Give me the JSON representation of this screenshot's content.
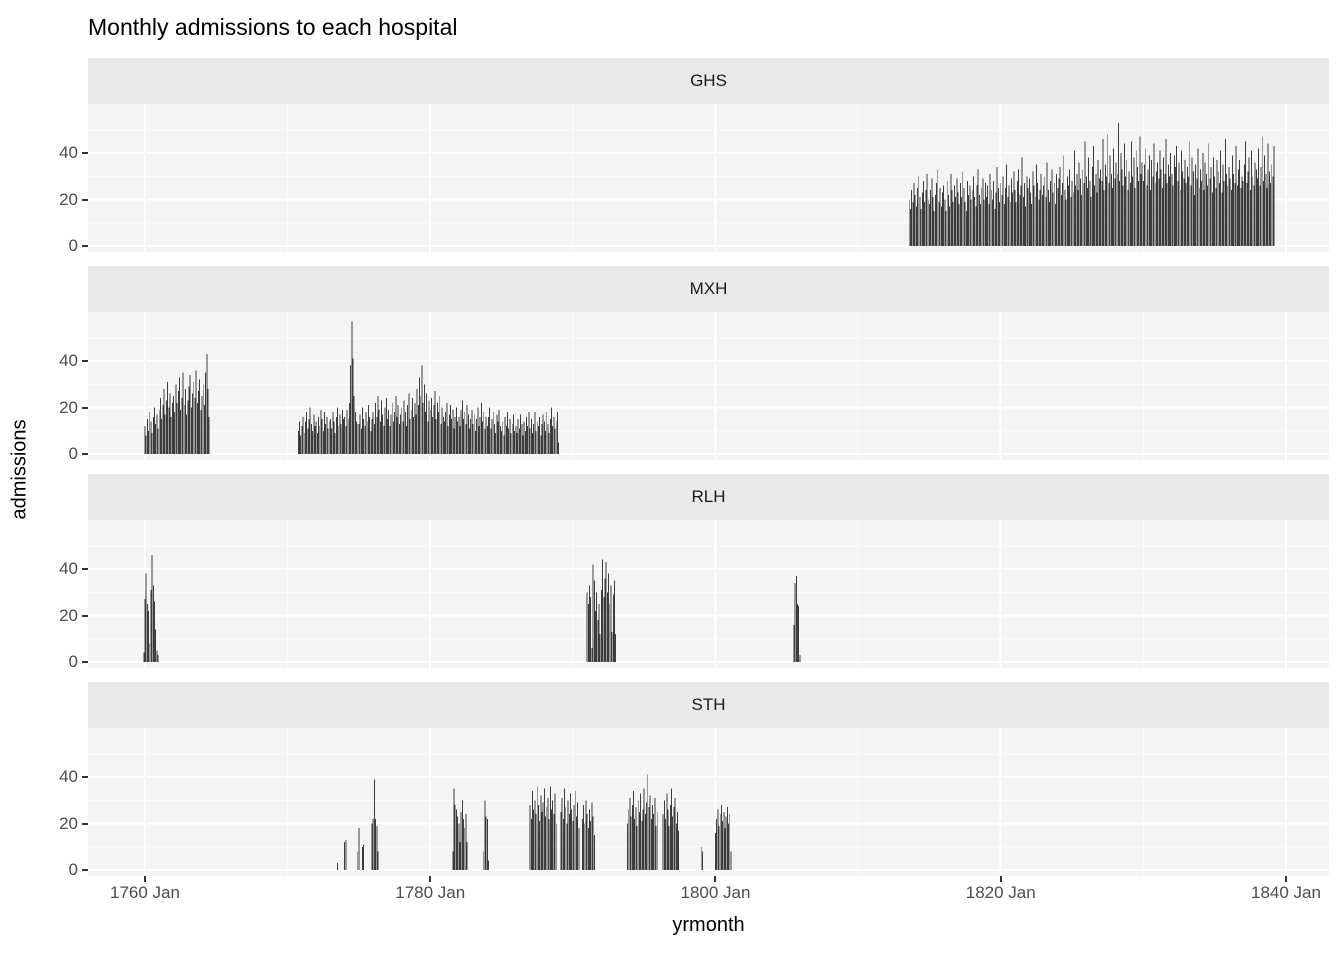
{
  "title": "Monthly admissions to each hospital",
  "colors": {
    "background": "#ffffff",
    "panel_bg": "#f4f4f4",
    "strip_bg": "#e9e9e9",
    "bar": "#3c3c3c",
    "grid_major": "#ffffff",
    "grid_minor": "#fbfbfb",
    "tick_label": "#4d4d4d",
    "tick_mark": "#333333",
    "axis_text": "#000000"
  },
  "chart_data": {
    "type": "bar",
    "title": "Monthly admissions to each hospital",
    "xlabel": "yrmonth",
    "ylabel": "admissions",
    "legend": "none",
    "grid": "on",
    "y_ticks": [
      0,
      20,
      40
    ],
    "y_minor": [
      10,
      30,
      50
    ],
    "ylim": [
      -3,
      57
    ],
    "x_ticks": [
      {
        "label": "1760 Jan",
        "year": 1760
      },
      {
        "label": "1780 Jan",
        "year": 1780
      },
      {
        "label": "1800 Jan",
        "year": 1800
      },
      {
        "label": "1820 Jan",
        "year": 1820
      },
      {
        "label": "1840 Jan",
        "year": 1840
      }
    ],
    "x_minor_years": [
      1770,
      1790,
      1810,
      1830
    ],
    "facets": [
      {
        "name": "GHS",
        "clusters": [
          {
            "start": "1813-08",
            "values": [
              20,
              16,
              24,
              19,
              27,
              22,
              17,
              25,
              30,
              21,
              16,
              23,
              28,
              19,
              24,
              31,
              20,
              18,
              24,
              29,
              21,
              15,
              22,
              27,
              33,
              19,
              25,
              17,
              23,
              26,
              20,
              15,
              28,
              22,
              17,
              31,
              24,
              19,
              26,
              21,
              29,
              23,
              18,
              27,
              21,
              32,
              25,
              19,
              15,
              28,
              22,
              26,
              20,
              24,
              30,
              21,
              17,
              26,
              33,
              22,
              18,
              25,
              29,
              20,
              27,
              21,
              26,
              18,
              31,
              24,
              20,
              28,
              16,
              23,
              34,
              25,
              19,
              27,
              22,
              30,
              18,
              25,
              35,
              21,
              26,
              19,
              29,
              23,
              32,
              24,
              19,
              28,
              33,
              22,
              26,
              38,
              21,
              27,
              17,
              30,
              25,
              29,
              23,
              18,
              32,
              26,
              21,
              35,
              27,
              20,
              24,
              31,
              22,
              26,
              30,
              21,
              36,
              24,
              19,
              28,
              33,
              23,
              27,
              18,
              31,
              25,
              29,
              34,
              22,
              27,
              39,
              24,
              20,
              30,
              26,
              33,
              21,
              28,
              23,
              41,
              26,
              31,
              24,
              36,
              29,
              22,
              33,
              27,
              45,
              30,
              25,
              38,
              28,
              21,
              34,
              43,
              26,
              31,
              23,
              37,
              29,
              33,
              28,
              46,
              24,
              35,
              30,
              48,
              27,
              39,
              31,
              25,
              42,
              29,
              36,
              31,
              53,
              28,
              40,
              33,
              26,
              44,
              30,
              37,
              24,
              32,
              27,
              45,
              30,
              38,
              25,
              41,
              34,
              28,
              47,
              31,
              36,
              28,
              35,
              42,
              26,
              33,
              39,
              24,
              37,
              30,
              44,
              27,
              32,
              36,
              29,
              41,
              33,
              25,
              38,
              31,
              46,
              27,
              35,
              30,
              40,
              31,
              26,
              39,
              34,
              43,
              28,
              36,
              24,
              41,
              32,
              29,
              37,
              27,
              34,
              30,
              45,
              26,
              38,
              32,
              22,
              35,
              29,
              42,
              25,
              33,
              28,
              40,
              24,
              36,
              31,
              26,
              44,
              29,
              34,
              23,
              38,
              30,
              25,
              37,
              32,
              27,
              41,
              23,
              35,
              28,
              46,
              31,
              26,
              34,
              29,
              24,
              39,
              31,
              27,
              43,
              26,
              33,
              37,
              25,
              30,
              28,
              35,
              45,
              27,
              32,
              38,
              24,
              41,
              30,
              26,
              36,
              33,
              29,
              42,
              26,
              34,
              47,
              28,
              39,
              31,
              25,
              44,
              32,
              27,
              35,
              30,
              43
            ]
          }
        ]
      },
      {
        "name": "MXH",
        "clusters": [
          {
            "start": "1760-01",
            "values": [
              12,
              8,
              15,
              10,
              18,
              14,
              9,
              16,
              20,
              13,
              17,
              11,
              19,
              24,
              15,
              21,
              28,
              17,
              23,
              31,
              20,
              26,
              16,
              22,
              25,
              18,
              30,
              22,
              27,
              33,
              19,
              24,
              35,
              21,
              28,
              17,
              23,
              29,
              34,
              20,
              26,
              31,
              24,
              36,
              22,
              27,
              32,
              19,
              25,
              30,
              21,
              35,
              43,
              28,
              16
            ]
          },
          {
            "start": "1770-10",
            "values": [
              10,
              14,
              8,
              12,
              16,
              9,
              14,
              18,
              11,
              15,
              20,
              13,
              10,
              17,
              12,
              14,
              9,
              16,
              12,
              19,
              15,
              10,
              18,
              13,
              16,
              11,
              14,
              15,
              11,
              18,
              14,
              9,
              16,
              20,
              12,
              17,
              13,
              19,
              15,
              16,
              12,
              19,
              15,
              22,
              38,
              57,
              41,
              25,
              18,
              14,
              13,
              13,
              17,
              11,
              20,
              15,
              12,
              18,
              14,
              21,
              16,
              10,
              15,
              18,
              13,
              22,
              16,
              25,
              19,
              14,
              23,
              17,
              12,
              20,
              24,
              15,
              19,
              12,
              17,
              22,
              14,
              18,
              25,
              16,
              21,
              13,
              17,
              20,
              14,
              23,
              18,
              12,
              21,
              26,
              15,
              19,
              24,
              16,
              22,
              17,
              28,
              21,
              33,
              25,
              38,
              22,
              30,
              18,
              26,
              14,
              23,
              19,
              24,
              16,
              21,
              27,
              15,
              22,
              18,
              25,
              13,
              20,
              16,
              14,
              18,
              22,
              12,
              17,
              21,
              15,
              19,
              11,
              16,
              20,
              14,
              16,
              12,
              19,
              23,
              15,
              18,
              13,
              21,
              17,
              11,
              15,
              19,
              13,
              17,
              10,
              15,
              20,
              12,
              16,
              22,
              14,
              18,
              11,
              16,
              12,
              16,
              20,
              11,
              15,
              18,
              13,
              9,
              17,
              14,
              19,
              12,
              10,
              14,
              8,
              16,
              12,
              18,
              11,
              15,
              9,
              13,
              17,
              10,
              12,
              9,
              15,
              11,
              17,
              13,
              8,
              14,
              10,
              16,
              12,
              18,
              11,
              15,
              9,
              13,
              18,
              10,
              14,
              12,
              16,
              8,
              13,
              17,
              14,
              10,
              18,
              13,
              9,
              15,
              20,
              12,
              16,
              11,
              14,
              18,
              5
            ]
          }
        ]
      },
      {
        "name": "RLH",
        "clusters": [
          {
            "start": "1759-12",
            "values": [
              4,
              27,
              38,
              25,
              22,
              8,
              31,
              46,
              33,
              26,
              14,
              5,
              3
            ]
          },
          {
            "start": "1791-01",
            "values": [
              30,
              25,
              33,
              28,
              6,
              42,
              35,
              22,
              30,
              18,
              25,
              12,
              31,
              44,
              28,
              36,
              43,
              30,
              38,
              25,
              33,
              13,
              29,
              35,
              12
            ]
          },
          {
            "start": "1805-07",
            "values": [
              16,
              34,
              37,
              25,
              24,
              3
            ]
          }
        ]
      },
      {
        "name": "STH",
        "clusters": [
          {
            "start": "1773-07",
            "values": [
              3
            ]
          },
          {
            "start": "1774-01",
            "values": [
              12,
              13
            ]
          },
          {
            "start": "1774-12",
            "values": [
              8,
              18
            ]
          },
          {
            "start": "1775-04",
            "values": [
              10,
              11
            ]
          },
          {
            "start": "1775-12",
            "values": [
              20,
              22,
              39,
              22,
              19,
              8
            ]
          },
          {
            "start": "1781-08",
            "values": [
              8,
              35,
              28,
              26,
              23,
              20,
              12,
              25,
              30,
              22,
              18,
              24,
              12
            ]
          },
          {
            "start": "1783-10",
            "values": [
              8,
              30,
              23,
              22,
              4
            ]
          },
          {
            "start": "1787-01",
            "values": [
              28,
              22,
              34,
              26,
              30,
              24,
              36,
              28,
              21,
              32,
              25,
              29,
              35,
              23,
              27,
              31,
              22,
              36,
              26,
              30,
              24,
              33,
              20
            ]
          },
          {
            "start": "1789-03",
            "values": [
              25,
              31,
              22,
              35,
              27,
              20,
              30,
              24,
              33,
              26,
              21,
              28,
              34,
              23,
              29,
              18
            ]
          },
          {
            "start": "1790-09",
            "values": [
              22,
              28,
              20,
              30,
              24,
              18,
              26,
              21,
              29,
              23,
              15
            ]
          },
          {
            "start": "1793-11",
            "values": [
              20,
              26,
              31,
              23,
              28,
              34,
              22,
              27,
              19,
              30,
              25,
              33,
              21,
              26,
              35,
              24,
              29,
              41,
              27,
              32,
              22,
              28,
              24,
              31,
              19,
              25
            ]
          },
          {
            "start": "1796-05",
            "values": [
              24,
              30,
              22,
              33,
              26,
              19,
              28,
              35,
              23,
              27,
              31,
              20,
              25,
              17
            ]
          },
          {
            "start": "1799-01",
            "values": [
              10,
              8
            ]
          },
          {
            "start": "1800-01",
            "values": [
              16,
              22,
              26,
              19,
              24,
              28,
              21,
              25,
              18,
              23,
              27,
              20,
              24,
              8
            ]
          }
        ]
      }
    ]
  }
}
